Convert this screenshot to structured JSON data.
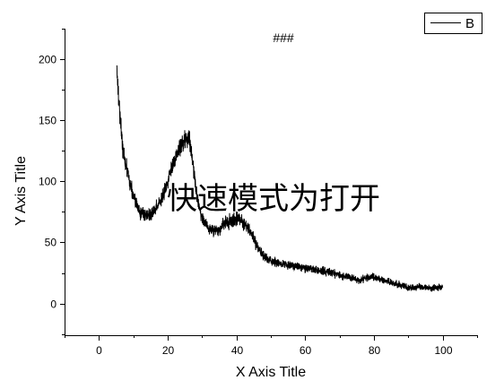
{
  "chart_data": {
    "type": "line",
    "title": "###",
    "xlabel": "X Axis Title",
    "ylabel": "Y Axis Title",
    "xlim": [
      -10,
      110
    ],
    "ylim": [
      -26,
      225
    ],
    "x_ticks": [
      0,
      20,
      40,
      60,
      80,
      100
    ],
    "y_ticks": [
      0,
      50,
      100,
      150,
      200
    ],
    "grid": false,
    "legend_position": "top-right",
    "series": [
      {
        "name": "B",
        "color": "#000000",
        "x": [
          5.2,
          5.5,
          6,
          6.5,
          7,
          7.5,
          8,
          9,
          10,
          11,
          12,
          13,
          14,
          15,
          16,
          17,
          18,
          19,
          20,
          21,
          22,
          23,
          24,
          25,
          26,
          27,
          28,
          29,
          30,
          31,
          32,
          33,
          34,
          35,
          36,
          37,
          38,
          39,
          40,
          41,
          42,
          43,
          44,
          45,
          46,
          47,
          48,
          49,
          50,
          52,
          54,
          56,
          58,
          60,
          62,
          64,
          66,
          68,
          70,
          72,
          74,
          76,
          78,
          80,
          82,
          84,
          86,
          88,
          90,
          92,
          94,
          96,
          98,
          100
        ],
        "y": [
          195,
          178,
          158,
          142,
          126,
          117,
          111,
          100,
          89,
          80,
          74,
          72,
          71,
          73,
          76,
          79,
          85,
          91,
          100,
          109,
          118,
          125,
          130,
          134,
          135,
          122,
          98,
          80,
          71,
          66,
          62,
          60,
          60,
          61,
          64,
          66,
          67,
          68,
          70,
          68,
          66,
          64,
          60,
          53,
          47,
          43,
          39,
          36,
          35,
          33,
          32,
          31,
          30,
          29,
          28,
          27,
          26,
          25,
          23,
          22,
          20,
          19,
          21,
          22,
          20,
          18,
          16,
          15,
          13,
          13,
          13,
          13,
          13,
          13
        ]
      }
    ]
  },
  "watermark": "快速模式为打开",
  "colors": {
    "background": "#ffffff",
    "axes": "#000000",
    "watermark": "#eeeacc"
  }
}
